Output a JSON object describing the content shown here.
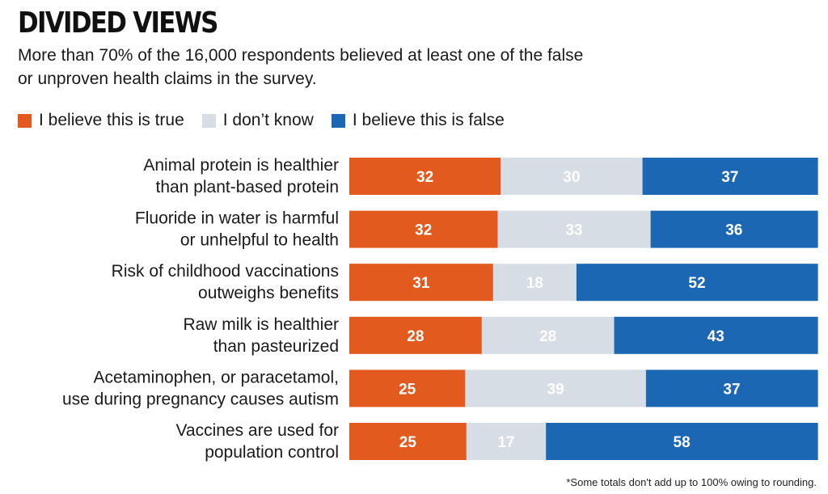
{
  "title": "DIVIDED VIEWS",
  "subtitle": "More than 70% of the 16,000 respondents believed at least one of the false or unproven health claims in the survey.",
  "footnote": "*Some totals don't add up to 100% owing to rounding.",
  "colors": {
    "true": "#e35a1e",
    "dont_know": "#d7dde4",
    "false": "#1c67b4"
  },
  "legend": [
    {
      "label": "I believe this is true",
      "color": "#e35a1e"
    },
    {
      "label": "I don’t know",
      "color": "#d7dde4"
    },
    {
      "label": "I believe this is false",
      "color": "#1c67b4"
    }
  ],
  "chart_data": {
    "type": "bar",
    "orientation": "horizontal",
    "stacked": true,
    "categories": [
      [
        "Animal protein is healthier",
        "than plant-based protein"
      ],
      [
        "Fluoride in water is harmful",
        "or unhelpful to health"
      ],
      [
        "Risk of childhood vaccinations",
        "outweighs benefits"
      ],
      [
        "Raw milk is healthier",
        "than pasteurized"
      ],
      [
        "Acetaminophen, or paracetamol,",
        "use during pregnancy causes autism"
      ],
      [
        "Vaccines are used for",
        "population control"
      ]
    ],
    "series": [
      {
        "name": "I believe this is true",
        "values": [
          32,
          32,
          31,
          28,
          25,
          25
        ],
        "color": "#e35a1e",
        "label_color": "#ffffff"
      },
      {
        "name": "I don’t know",
        "values": [
          30,
          33,
          18,
          28,
          39,
          17
        ],
        "color": "#d7dde4",
        "label_color": "#ffffff"
      },
      {
        "name": "I believe this is false",
        "values": [
          37,
          36,
          52,
          43,
          37,
          58
        ],
        "color": "#1c67b4",
        "label_color": "#ffffff"
      }
    ],
    "xlim": [
      0,
      100
    ],
    "grid": false,
    "legend_position": "top-left"
  }
}
